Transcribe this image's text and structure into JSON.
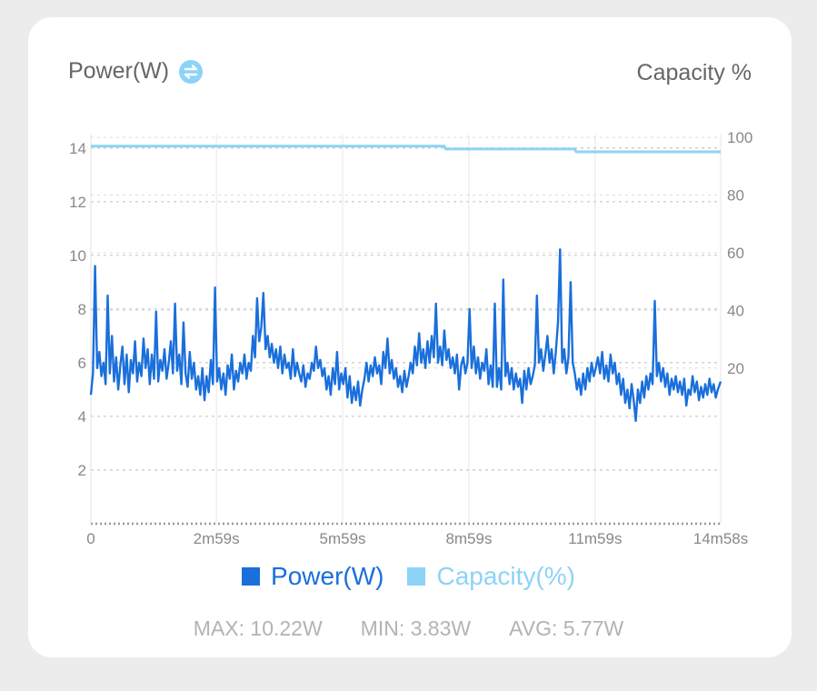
{
  "header": {
    "left_title": "Power(W)",
    "left_icon": "swap-vertical-icon",
    "right_title": "Capacity %"
  },
  "colors": {
    "power": "#1a6fdb",
    "capacity": "#8dd3f7",
    "grid": "#c8c8c8",
    "axis_text": "#888888",
    "stats_text": "#b3b3b3"
  },
  "chart_data": {
    "type": "line",
    "x_ticks": [
      "0",
      "2m59s",
      "5m59s",
      "8m59s",
      "11m59s",
      "14m58s"
    ],
    "x_tick_seconds": [
      0,
      179,
      359,
      539,
      719,
      898
    ],
    "xlim": [
      0,
      898
    ],
    "y_left": {
      "label": "Power(W)",
      "ticks": [
        2,
        4,
        6,
        8,
        10,
        12,
        14
      ],
      "range": [
        0,
        14.5
      ]
    },
    "y_right": {
      "label": "Capacity %",
      "ticks": [
        20,
        40,
        60,
        80,
        100
      ],
      "range": [
        -34,
        101
      ]
    },
    "series": [
      {
        "name": "Power(W)",
        "axis": "left",
        "points": [
          [
            0,
            4.8
          ],
          [
            3,
            5.6
          ],
          [
            6,
            9.6
          ],
          [
            9,
            5.8
          ],
          [
            12,
            6.4
          ],
          [
            15,
            5.5
          ],
          [
            18,
            6.0
          ],
          [
            21,
            5.2
          ],
          [
            24,
            8.5
          ],
          [
            27,
            5.6
          ],
          [
            30,
            7.0
          ],
          [
            33,
            5.3
          ],
          [
            36,
            6.2
          ],
          [
            39,
            5.0
          ],
          [
            42,
            5.9
          ],
          [
            45,
            6.6
          ],
          [
            48,
            5.2
          ],
          [
            51,
            6.3
          ],
          [
            54,
            4.9
          ],
          [
            57,
            6.1
          ],
          [
            60,
            5.6
          ],
          [
            63,
            6.8
          ],
          [
            66,
            5.3
          ],
          [
            69,
            6.0
          ],
          [
            72,
            5.5
          ],
          [
            75,
            6.9
          ],
          [
            78,
            5.8
          ],
          [
            81,
            6.5
          ],
          [
            84,
            5.2
          ],
          [
            87,
            6.3
          ],
          [
            90,
            5.4
          ],
          [
            93,
            7.9
          ],
          [
            96,
            5.3
          ],
          [
            99,
            6.1
          ],
          [
            102,
            5.7
          ],
          [
            105,
            6.5
          ],
          [
            108,
            5.4
          ],
          [
            111,
            6.0
          ],
          [
            114,
            6.8
          ],
          [
            117,
            5.6
          ],
          [
            120,
            8.2
          ],
          [
            123,
            5.7
          ],
          [
            126,
            6.3
          ],
          [
            129,
            5.2
          ],
          [
            132,
            7.5
          ],
          [
            135,
            5.6
          ],
          [
            138,
            5.1
          ],
          [
            141,
            6.4
          ],
          [
            144,
            5.4
          ],
          [
            147,
            6.0
          ],
          [
            150,
            5.0
          ],
          [
            153,
            5.5
          ],
          [
            156,
            4.8
          ],
          [
            159,
            5.8
          ],
          [
            162,
            4.6
          ],
          [
            165,
            5.5
          ],
          [
            168,
            4.9
          ],
          [
            171,
            6.1
          ],
          [
            174,
            5.2
          ],
          [
            177,
            8.8
          ],
          [
            180,
            5.3
          ],
          [
            183,
            5.8
          ],
          [
            186,
            5.0
          ],
          [
            189,
            5.6
          ],
          [
            192,
            4.8
          ],
          [
            195,
            5.9
          ],
          [
            198,
            5.4
          ],
          [
            201,
            6.3
          ],
          [
            204,
            5.0
          ],
          [
            207,
            5.7
          ],
          [
            210,
            5.3
          ],
          [
            213,
            6.0
          ],
          [
            216,
            5.6
          ],
          [
            219,
            6.3
          ],
          [
            222,
            5.4
          ],
          [
            225,
            6.0
          ],
          [
            228,
            5.7
          ],
          [
            231,
            7.0
          ],
          [
            234,
            6.2
          ],
          [
            237,
            8.4
          ],
          [
            240,
            6.8
          ],
          [
            243,
            7.3
          ],
          [
            246,
            8.6
          ],
          [
            249,
            6.5
          ],
          [
            252,
            7.0
          ],
          [
            255,
            6.2
          ],
          [
            258,
            6.7
          ],
          [
            261,
            6.0
          ],
          [
            264,
            6.5
          ],
          [
            267,
            5.8
          ],
          [
            270,
            6.6
          ],
          [
            273,
            5.6
          ],
          [
            276,
            6.3
          ],
          [
            279,
            5.8
          ],
          [
            282,
            6.0
          ],
          [
            285,
            5.4
          ],
          [
            288,
            6.5
          ],
          [
            291,
            5.5
          ],
          [
            294,
            6.0
          ],
          [
            297,
            5.6
          ],
          [
            300,
            5.3
          ],
          [
            303,
            5.9
          ],
          [
            306,
            5.1
          ],
          [
            309,
            5.6
          ],
          [
            312,
            5.4
          ],
          [
            315,
            6.0
          ],
          [
            318,
            5.7
          ],
          [
            321,
            6.6
          ],
          [
            324,
            5.8
          ],
          [
            327,
            6.1
          ],
          [
            330,
            5.5
          ],
          [
            333,
            5.8
          ],
          [
            336,
            5.0
          ],
          [
            339,
            5.5
          ],
          [
            342,
            4.8
          ],
          [
            345,
            5.8
          ],
          [
            348,
            5.2
          ],
          [
            351,
            6.4
          ],
          [
            354,
            5.0
          ],
          [
            357,
            5.6
          ],
          [
            360,
            5.2
          ],
          [
            363,
            5.8
          ],
          [
            366,
            4.7
          ],
          [
            369,
            5.5
          ],
          [
            372,
            4.5
          ],
          [
            375,
            5.1
          ],
          [
            378,
            4.6
          ],
          [
            381,
            5.3
          ],
          [
            384,
            4.4
          ],
          [
            387,
            5.0
          ],
          [
            390,
            5.4
          ],
          [
            393,
            6.0
          ],
          [
            396,
            5.3
          ],
          [
            399,
            5.9
          ],
          [
            402,
            5.5
          ],
          [
            405,
            6.2
          ],
          [
            408,
            5.6
          ],
          [
            411,
            5.9
          ],
          [
            414,
            5.2
          ],
          [
            417,
            6.4
          ],
          [
            420,
            5.8
          ],
          [
            423,
            6.9
          ],
          [
            426,
            5.6
          ],
          [
            429,
            6.1
          ],
          [
            432,
            5.4
          ],
          [
            435,
            5.8
          ],
          [
            438,
            5.1
          ],
          [
            441,
            5.5
          ],
          [
            444,
            4.9
          ],
          [
            447,
            5.7
          ],
          [
            450,
            5.1
          ],
          [
            453,
            5.5
          ],
          [
            456,
            6.0
          ],
          [
            459,
            5.6
          ],
          [
            462,
            6.6
          ],
          [
            465,
            5.9
          ],
          [
            468,
            7.1
          ],
          [
            471,
            6.0
          ],
          [
            474,
            6.5
          ],
          [
            477,
            5.8
          ],
          [
            480,
            6.8
          ],
          [
            483,
            6.0
          ],
          [
            486,
            7.0
          ],
          [
            489,
            6.2
          ],
          [
            492,
            8.2
          ],
          [
            495,
            6.0
          ],
          [
            498,
            6.6
          ],
          [
            501,
            5.9
          ],
          [
            504,
            7.2
          ],
          [
            507,
            6.1
          ],
          [
            510,
            6.5
          ],
          [
            513,
            5.8
          ],
          [
            516,
            6.2
          ],
          [
            519,
            5.6
          ],
          [
            522,
            6.3
          ],
          [
            525,
            5.0
          ],
          [
            528,
            5.9
          ],
          [
            531,
            6.2
          ],
          [
            534,
            5.6
          ],
          [
            537,
            6.0
          ],
          [
            540,
            8.0
          ],
          [
            543,
            5.8
          ],
          [
            546,
            6.6
          ],
          [
            549,
            5.6
          ],
          [
            552,
            6.2
          ],
          [
            555,
            5.4
          ],
          [
            558,
            6.0
          ],
          [
            561,
            5.7
          ],
          [
            564,
            6.5
          ],
          [
            567,
            5.2
          ],
          [
            570,
            5.9
          ],
          [
            573,
            5.1
          ],
          [
            576,
            8.2
          ],
          [
            579,
            5.1
          ],
          [
            582,
            5.8
          ],
          [
            585,
            5.0
          ],
          [
            588,
            9.1
          ],
          [
            591,
            5.5
          ],
          [
            594,
            6.0
          ],
          [
            597,
            5.2
          ],
          [
            600,
            5.8
          ],
          [
            603,
            5.0
          ],
          [
            606,
            5.6
          ],
          [
            609,
            5.1
          ],
          [
            612,
            5.4
          ],
          [
            615,
            4.5
          ],
          [
            618,
            5.7
          ],
          [
            621,
            5.0
          ],
          [
            624,
            5.8
          ],
          [
            627,
            5.2
          ],
          [
            630,
            5.5
          ],
          [
            633,
            5.9
          ],
          [
            636,
            8.5
          ],
          [
            639,
            6.0
          ],
          [
            642,
            6.5
          ],
          [
            645,
            5.7
          ],
          [
            648,
            6.3
          ],
          [
            651,
            7.0
          ],
          [
            654,
            6.0
          ],
          [
            657,
            6.5
          ],
          [
            660,
            5.6
          ],
          [
            663,
            6.4
          ],
          [
            666,
            7.5
          ],
          [
            669,
            10.22
          ],
          [
            672,
            6.0
          ],
          [
            675,
            6.5
          ],
          [
            678,
            5.6
          ],
          [
            681,
            6.2
          ],
          [
            684,
            9.0
          ],
          [
            687,
            6.0
          ],
          [
            690,
            5.6
          ],
          [
            693,
            5.0
          ],
          [
            696,
            5.4
          ],
          [
            699,
            4.8
          ],
          [
            702,
            5.6
          ],
          [
            705,
            5.0
          ],
          [
            708,
            5.8
          ],
          [
            711,
            5.3
          ],
          [
            714,
            6.0
          ],
          [
            717,
            5.5
          ],
          [
            720,
            5.8
          ],
          [
            723,
            6.2
          ],
          [
            726,
            5.6
          ],
          [
            729,
            6.4
          ],
          [
            732,
            5.4
          ],
          [
            735,
            5.9
          ],
          [
            738,
            5.3
          ],
          [
            741,
            6.3
          ],
          [
            744,
            5.6
          ],
          [
            747,
            6.0
          ],
          [
            750,
            5.2
          ],
          [
            753,
            5.6
          ],
          [
            756,
            4.8
          ],
          [
            759,
            5.4
          ],
          [
            762,
            4.5
          ],
          [
            765,
            5.0
          ],
          [
            768,
            4.3
          ],
          [
            771,
            5.2
          ],
          [
            774,
            4.6
          ],
          [
            777,
            3.83
          ],
          [
            780,
            5.0
          ],
          [
            783,
            4.5
          ],
          [
            786,
            5.3
          ],
          [
            789,
            4.7
          ],
          [
            792,
            5.5
          ],
          [
            795,
            5.0
          ],
          [
            798,
            5.6
          ],
          [
            801,
            5.2
          ],
          [
            804,
            8.3
          ],
          [
            807,
            5.5
          ],
          [
            810,
            6.0
          ],
          [
            813,
            5.3
          ],
          [
            816,
            5.8
          ],
          [
            819,
            5.1
          ],
          [
            822,
            5.6
          ],
          [
            825,
            4.8
          ],
          [
            828,
            5.4
          ],
          [
            831,
            5.0
          ],
          [
            834,
            5.5
          ],
          [
            837,
            4.9
          ],
          [
            840,
            5.3
          ],
          [
            843,
            4.8
          ],
          [
            846,
            5.4
          ],
          [
            849,
            4.4
          ],
          [
            852,
            5.0
          ],
          [
            855,
            4.8
          ],
          [
            858,
            5.5
          ],
          [
            861,
            4.9
          ],
          [
            864,
            5.3
          ],
          [
            867,
            4.6
          ],
          [
            870,
            5.1
          ],
          [
            873,
            4.7
          ],
          [
            876,
            5.2
          ],
          [
            879,
            4.8
          ],
          [
            882,
            5.4
          ],
          [
            885,
            4.9
          ],
          [
            888,
            5.2
          ],
          [
            891,
            4.7
          ],
          [
            894,
            5.0
          ],
          [
            898,
            5.3
          ]
        ]
      },
      {
        "name": "Capacity(%)",
        "axis": "right",
        "points": [
          [
            0,
            97
          ],
          [
            504,
            97
          ],
          [
            506,
            96
          ],
          [
            690,
            96
          ],
          [
            692,
            95
          ],
          [
            898,
            95
          ]
        ]
      }
    ],
    "legend": [
      "Power(W)",
      "Capacity(%)"
    ],
    "grid": true,
    "legend_position": "bottom"
  },
  "stats": {
    "max": "MAX: 10.22W",
    "min": "MIN: 3.83W",
    "avg": "AVG: 5.77W"
  }
}
